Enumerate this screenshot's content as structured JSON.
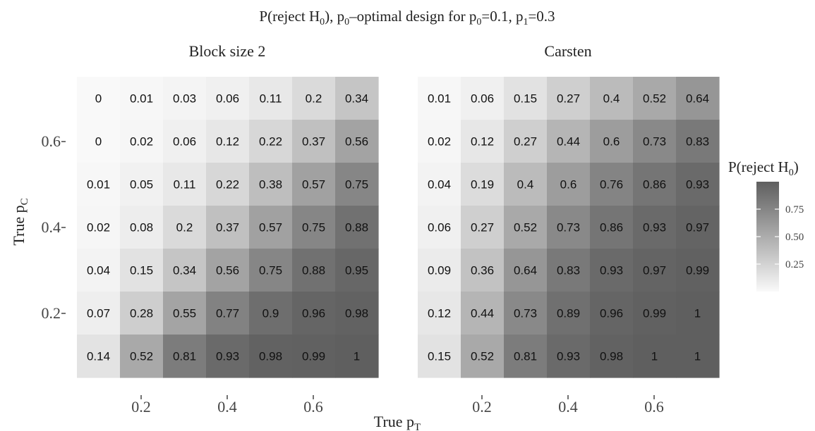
{
  "title": {
    "prefix": "P(reject H",
    "sub": "0",
    "mid": "),  p",
    "mid_sub": "0",
    "rest": "–optimal design for p",
    "rest_sub": "0",
    "p0_value": "=0.1, p",
    "p1_sub": "1",
    "p1_value": "=0.3"
  },
  "x_axis": {
    "label_main": "True p",
    "label_sub": "T",
    "ticks": [
      "0.2",
      "0.4",
      "0.6"
    ]
  },
  "y_axis": {
    "label_main": "True p",
    "label_sub": "C",
    "ticks": [
      "0.6",
      "0.4",
      "0.2"
    ]
  },
  "legend": {
    "title_main": "P(reject H",
    "title_sub": "0",
    "title_end": ")",
    "ticks": [
      "0.75",
      "0.50",
      "0.25"
    ],
    "tick_values": [
      0.75,
      0.5,
      0.25
    ],
    "colors": {
      "high": "#5f5f5f",
      "low": "#f9f9f9"
    },
    "placement": "right"
  },
  "chart_data": [
    {
      "type": "heatmap",
      "title": "Block size 2",
      "x": [
        0.1,
        0.2,
        0.3,
        0.4,
        0.5,
        0.6,
        0.7
      ],
      "y": [
        0.7,
        0.6,
        0.5,
        0.4,
        0.3,
        0.2,
        0.1
      ],
      "values": [
        [
          0,
          0.01,
          0.03,
          0.06,
          0.11,
          0.2,
          0.34
        ],
        [
          0,
          0.02,
          0.06,
          0.12,
          0.22,
          0.37,
          0.56
        ],
        [
          0.01,
          0.05,
          0.11,
          0.22,
          0.38,
          0.57,
          0.75
        ],
        [
          0.02,
          0.08,
          0.2,
          0.37,
          0.57,
          0.75,
          0.88
        ],
        [
          0.04,
          0.15,
          0.34,
          0.56,
          0.75,
          0.88,
          0.95
        ],
        [
          0.07,
          0.28,
          0.55,
          0.77,
          0.9,
          0.96,
          0.98
        ],
        [
          0.14,
          0.52,
          0.81,
          0.93,
          0.98,
          0.99,
          1
        ]
      ]
    },
    {
      "type": "heatmap",
      "title": "Carsten",
      "x": [
        0.1,
        0.2,
        0.3,
        0.4,
        0.5,
        0.6,
        0.7
      ],
      "y": [
        0.7,
        0.6,
        0.5,
        0.4,
        0.3,
        0.2,
        0.1
      ],
      "values": [
        [
          0.01,
          0.06,
          0.15,
          0.27,
          0.4,
          0.52,
          0.64
        ],
        [
          0.02,
          0.12,
          0.27,
          0.44,
          0.6,
          0.73,
          0.83
        ],
        [
          0.04,
          0.19,
          0.4,
          0.6,
          0.76,
          0.86,
          0.93
        ],
        [
          0.06,
          0.27,
          0.52,
          0.73,
          0.86,
          0.93,
          0.97
        ],
        [
          0.09,
          0.36,
          0.64,
          0.83,
          0.93,
          0.97,
          0.99
        ],
        [
          0.12,
          0.44,
          0.73,
          0.89,
          0.96,
          0.99,
          1
        ],
        [
          0.15,
          0.52,
          0.81,
          0.93,
          0.98,
          1,
          1
        ]
      ]
    }
  ]
}
